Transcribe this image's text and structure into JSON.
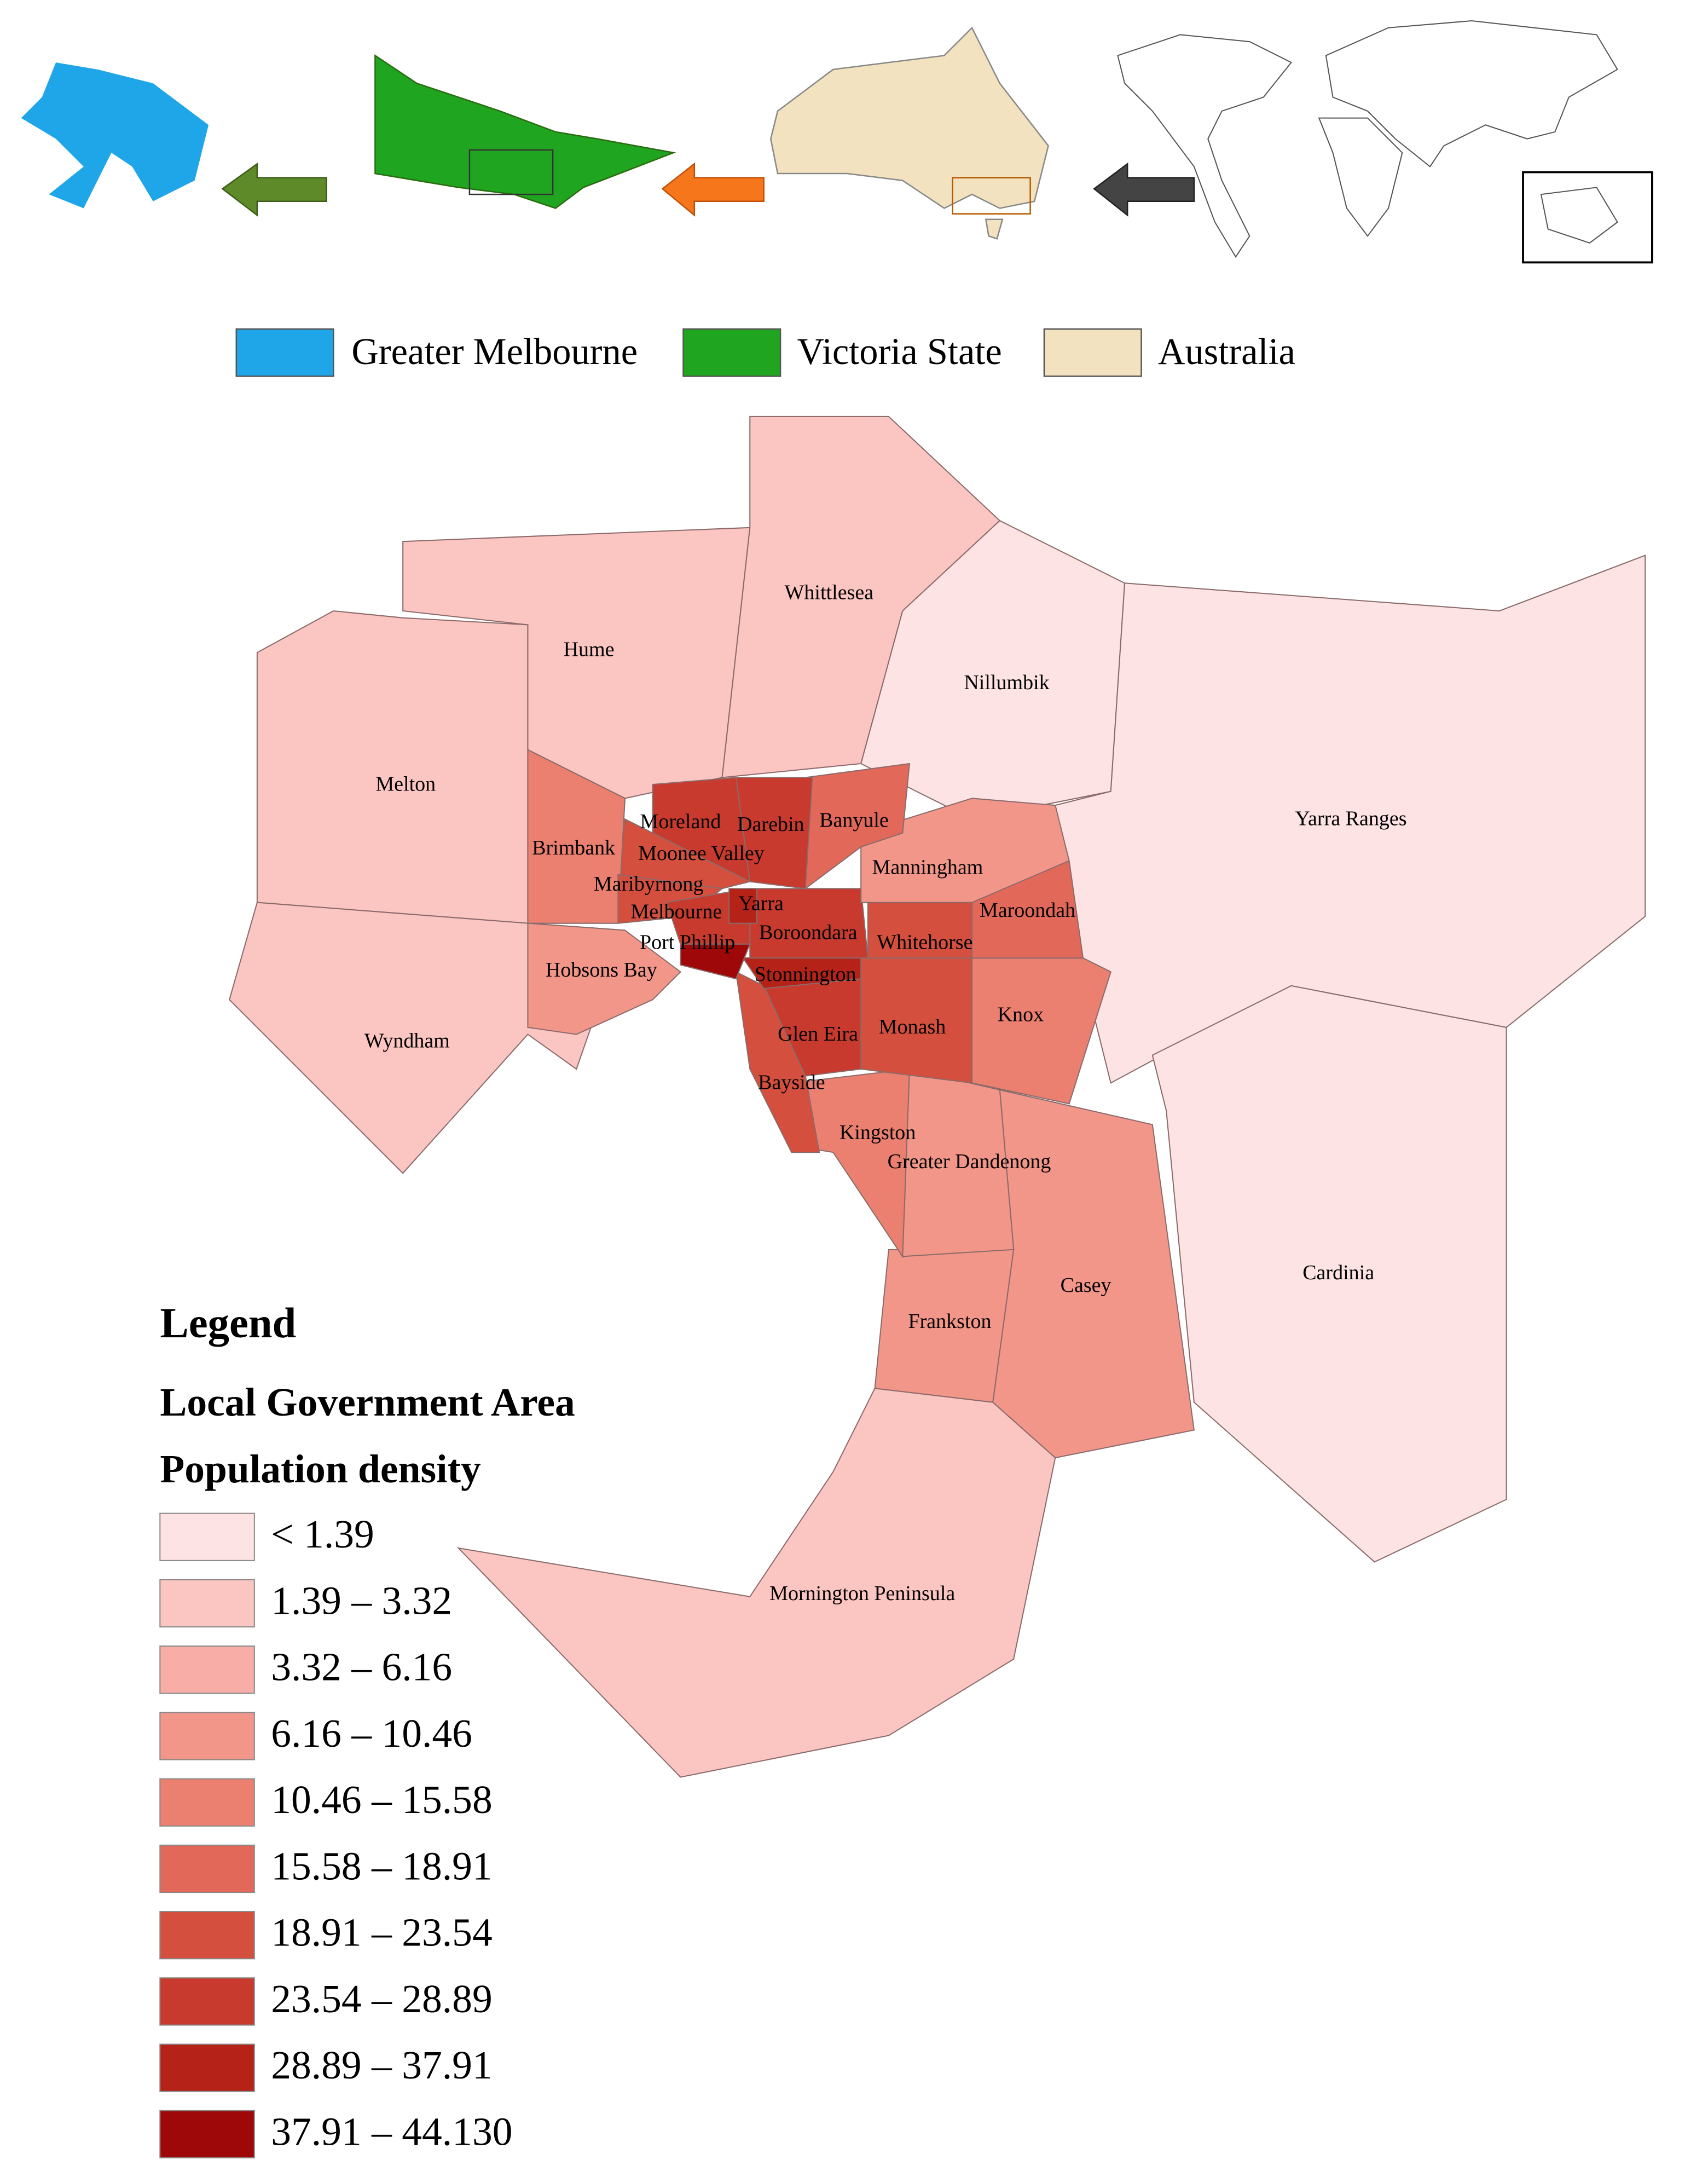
{
  "inset_legend": [
    "Greater Melbourne",
    "Victoria State",
    "Australia"
  ],
  "inset_colors": [
    "#1fa6e8",
    "#1fa51f",
    "#f2e2bf"
  ],
  "map_labels": [
    "Whittlesea",
    "Hume",
    "Nillumbik",
    "Melton",
    "Yarra Ranges",
    "Moreland",
    "Darebin",
    "Banyule",
    "Brimbank",
    "Moonee Valley",
    "Manningham",
    "Maribyrnong",
    "Yarra",
    "Maroondah",
    "Melbourne",
    "Boroondara",
    "Port Phillip",
    "Whitehorse",
    "Hobsons Bay",
    "Stonnington",
    "Knox",
    "Wyndham",
    "Glen Eira",
    "Monash",
    "Bayside",
    "Kingston",
    "Greater Dandenong",
    "Cardinia",
    "Casey",
    "Frankston",
    "Mornington Peninsula"
  ],
  "legend": {
    "title": "Legend",
    "subtitle": "Local Government Area",
    "heading": "Population density",
    "classes": [
      {
        "label": "< 1.39",
        "color": "#fde3e3"
      },
      {
        "label": "1.39 – 3.32",
        "color": "#fbc5c1"
      },
      {
        "label": "3.32 – 6.16",
        "color": "#f8aea6"
      },
      {
        "label": "6.16 – 10.46",
        "color": "#f3968a"
      },
      {
        "label": "10.46 – 15.58",
        "color": "#ec8070"
      },
      {
        "label": "15.58 – 18.91",
        "color": "#e2695a"
      },
      {
        "label": "18.91 – 23.54",
        "color": "#d44f3e"
      },
      {
        "label": "23.54 – 28.89",
        "color": "#c73a2d"
      },
      {
        "label": "28.89 – 37.91",
        "color": "#b42218"
      },
      {
        "label": "37.91 – 44.130",
        "color": "#9e0808"
      }
    ]
  }
}
